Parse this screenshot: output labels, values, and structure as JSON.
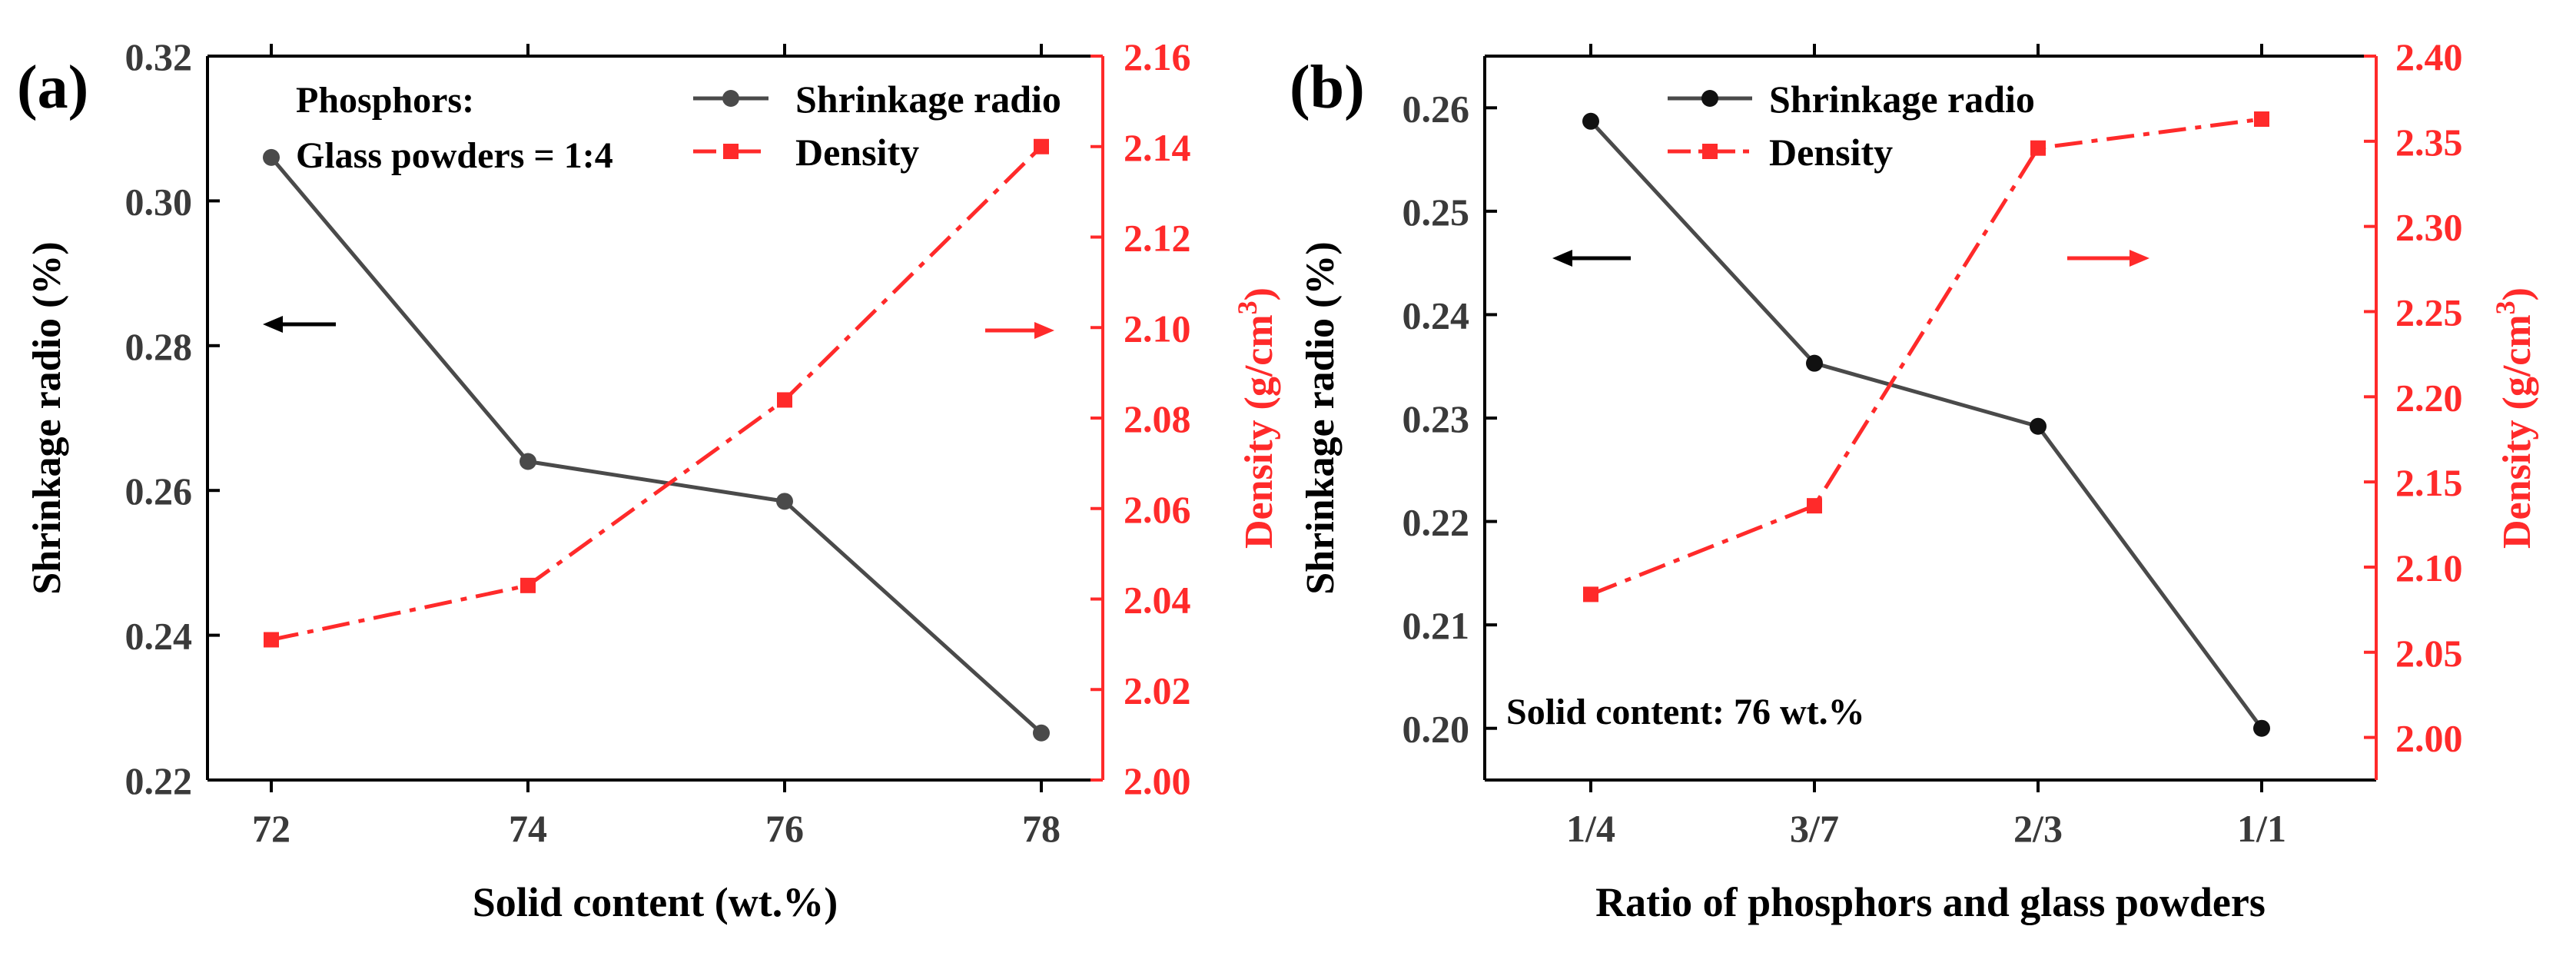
{
  "colors": {
    "shrinkage": "#4a4a4a",
    "density": "#ff2a2a",
    "axis_left": "#000000",
    "tick_left": "#3a3a3a",
    "axis_right": "#ff2a2a"
  },
  "chart_data": [
    {
      "panel_label": "(a)",
      "type": "line",
      "categories": [
        "72",
        "74",
        "76",
        "78"
      ],
      "xlabel": "Solid content (wt.%)",
      "ylabel_left": "Shrinkage radio (%)",
      "ylabel_right": "Density (g/cm",
      "ylabel_right_sup": "3",
      "ylabel_right_close": ")",
      "ylim_left": [
        0.22,
        0.32
      ],
      "yticks_left": [
        "0.22",
        "0.24",
        "0.26",
        "0.28",
        "0.30",
        "0.32"
      ],
      "ylim_right": [
        2.0,
        2.16
      ],
      "yticks_right": [
        "2.00",
        "2.02",
        "2.04",
        "2.06",
        "2.08",
        "2.10",
        "2.12",
        "2.14",
        "2.16"
      ],
      "series": [
        {
          "name": "Shrinkage radio",
          "axis": "left",
          "values": [
            0.306,
            0.264,
            0.2585,
            0.2265
          ]
        },
        {
          "name": "Density",
          "axis": "right",
          "values": [
            2.031,
            2.043,
            2.084,
            2.14
          ]
        }
      ],
      "annotation_lines": [
        "Phosphors:",
        "Glass powders = 1:4"
      ]
    },
    {
      "panel_label": "(b)",
      "type": "line",
      "categories": [
        "1/4",
        "3/7",
        "2/3",
        "1/1"
      ],
      "xlabel": "Ratio of phosphors and glass powders",
      "ylabel_left": "Shrinkage radio (%)",
      "ylabel_right": "Density (g/cm",
      "ylabel_right_sup": "3",
      "ylabel_right_close": ")",
      "ylim_left": [
        0.195,
        0.265
      ],
      "yticks_left": [
        "0.20",
        "0.21",
        "0.22",
        "0.23",
        "0.24",
        "0.25",
        "0.26"
      ],
      "ylim_right": [
        1.975,
        2.4
      ],
      "yticks_right": [
        "2.00",
        "2.05",
        "2.10",
        "2.15",
        "2.20",
        "2.25",
        "2.30",
        "2.35",
        "2.40"
      ],
      "series": [
        {
          "name": "Shrinkage radio",
          "axis": "left",
          "values": [
            0.2587,
            0.2353,
            0.2292,
            0.2
          ]
        },
        {
          "name": "Density",
          "axis": "right",
          "values": [
            2.084,
            2.136,
            2.346,
            2.363
          ]
        }
      ],
      "annotation_lines": [
        "Solid content: 76 wt.%"
      ]
    }
  ]
}
